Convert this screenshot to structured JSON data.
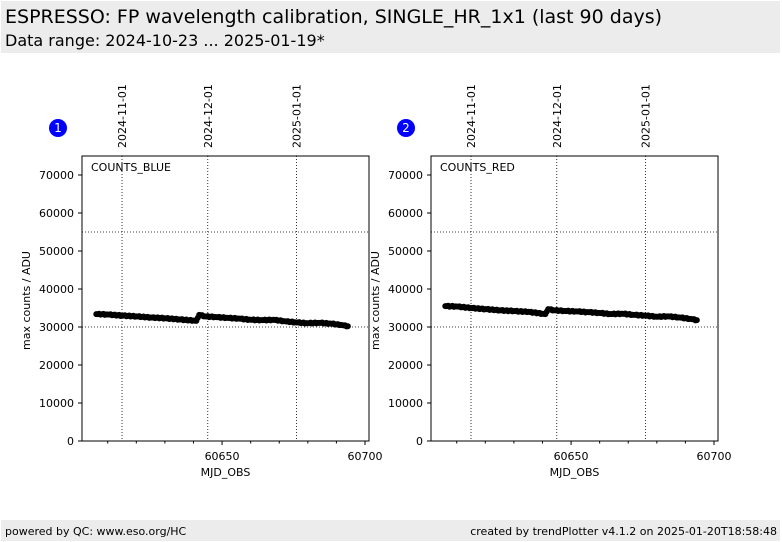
{
  "header": {
    "title": "ESPRESSO: FP wavelength calibration, SINGLE_HR_1x1 (last 90 days)",
    "subtitle": "Data range: 2024-10-23 ... 2025-01-19*"
  },
  "footer": {
    "left": "powered by QC: www.eso.org/HC",
    "right": "created by trendPlotter v4.1.2 on 2025-01-20T18:58:48"
  },
  "colors": {
    "badge": "#0000ff",
    "data": "#000000",
    "background": "#ececec"
  },
  "chart_data": [
    {
      "type": "scatter",
      "badge": "1",
      "label": "COUNTS_BLUE",
      "xlabel": "MJD_OBS",
      "ylabel": "max counts / ADU",
      "xlim": [
        60601,
        60701.4
      ],
      "ylim": [
        0,
        75000
      ],
      "xticks": [
        60650,
        60700
      ],
      "xtick_labels": [
        "60650",
        "60700"
      ],
      "xminor_step": 10,
      "yticks": [
        0,
        10000,
        20000,
        30000,
        40000,
        50000,
        60000,
        70000
      ],
      "ytick_labels": [
        "0",
        "10000",
        "20000",
        "30000",
        "40000",
        "50000",
        "60000",
        "70000"
      ],
      "hlines": [
        30000,
        55000
      ],
      "date_lines": [
        {
          "x": 60615,
          "label": "2024-11-01"
        },
        {
          "x": 60645,
          "label": "2024-12-01"
        },
        {
          "x": 60676,
          "label": "2025-01-01"
        }
      ],
      "series": [
        {
          "name": "COUNTS_BLUE",
          "x": [
            60606,
            60610,
            60615,
            60620,
            60625,
            60630,
            60635,
            60640,
            60641,
            60642,
            60644,
            60648,
            60652,
            60656,
            60660,
            60664,
            60668,
            60672,
            60676,
            60680,
            60684,
            60688,
            60692,
            60694
          ],
          "y": [
            33400,
            33300,
            33000,
            32800,
            32500,
            32300,
            32000,
            31700,
            31600,
            33200,
            32800,
            32600,
            32400,
            32200,
            31900,
            31800,
            31900,
            31500,
            31200,
            31000,
            31100,
            30900,
            30500,
            30200
          ]
        }
      ]
    },
    {
      "type": "scatter",
      "badge": "2",
      "label": "COUNTS_RED",
      "xlabel": "MJD_OBS",
      "ylabel": "max counts / ADU",
      "xlim": [
        60601,
        60701.4
      ],
      "ylim": [
        0,
        75000
      ],
      "xticks": [
        60650,
        60700
      ],
      "xtick_labels": [
        "60650",
        "60700"
      ],
      "xminor_step": 10,
      "yticks": [
        0,
        10000,
        20000,
        30000,
        40000,
        50000,
        60000,
        70000
      ],
      "ytick_labels": [
        "0",
        "10000",
        "20000",
        "30000",
        "40000",
        "50000",
        "60000",
        "70000"
      ],
      "hlines": [
        30000,
        55000
      ],
      "date_lines": [
        {
          "x": 60615,
          "label": "2024-11-01"
        },
        {
          "x": 60645,
          "label": "2024-12-01"
        },
        {
          "x": 60676,
          "label": "2025-01-01"
        }
      ],
      "series": [
        {
          "name": "COUNTS_RED",
          "x": [
            60606,
            60610,
            60615,
            60620,
            60625,
            60630,
            60635,
            60640,
            60641,
            60642,
            60644,
            60648,
            60652,
            60656,
            60660,
            60664,
            60668,
            60672,
            60676,
            60680,
            60684,
            60688,
            60692,
            60694
          ],
          "y": [
            35500,
            35400,
            35000,
            34700,
            34400,
            34200,
            34000,
            33500,
            33400,
            34700,
            34400,
            34200,
            34100,
            33900,
            33700,
            33400,
            33500,
            33200,
            33000,
            32700,
            32800,
            32500,
            32100,
            31800
          ]
        }
      ]
    }
  ]
}
